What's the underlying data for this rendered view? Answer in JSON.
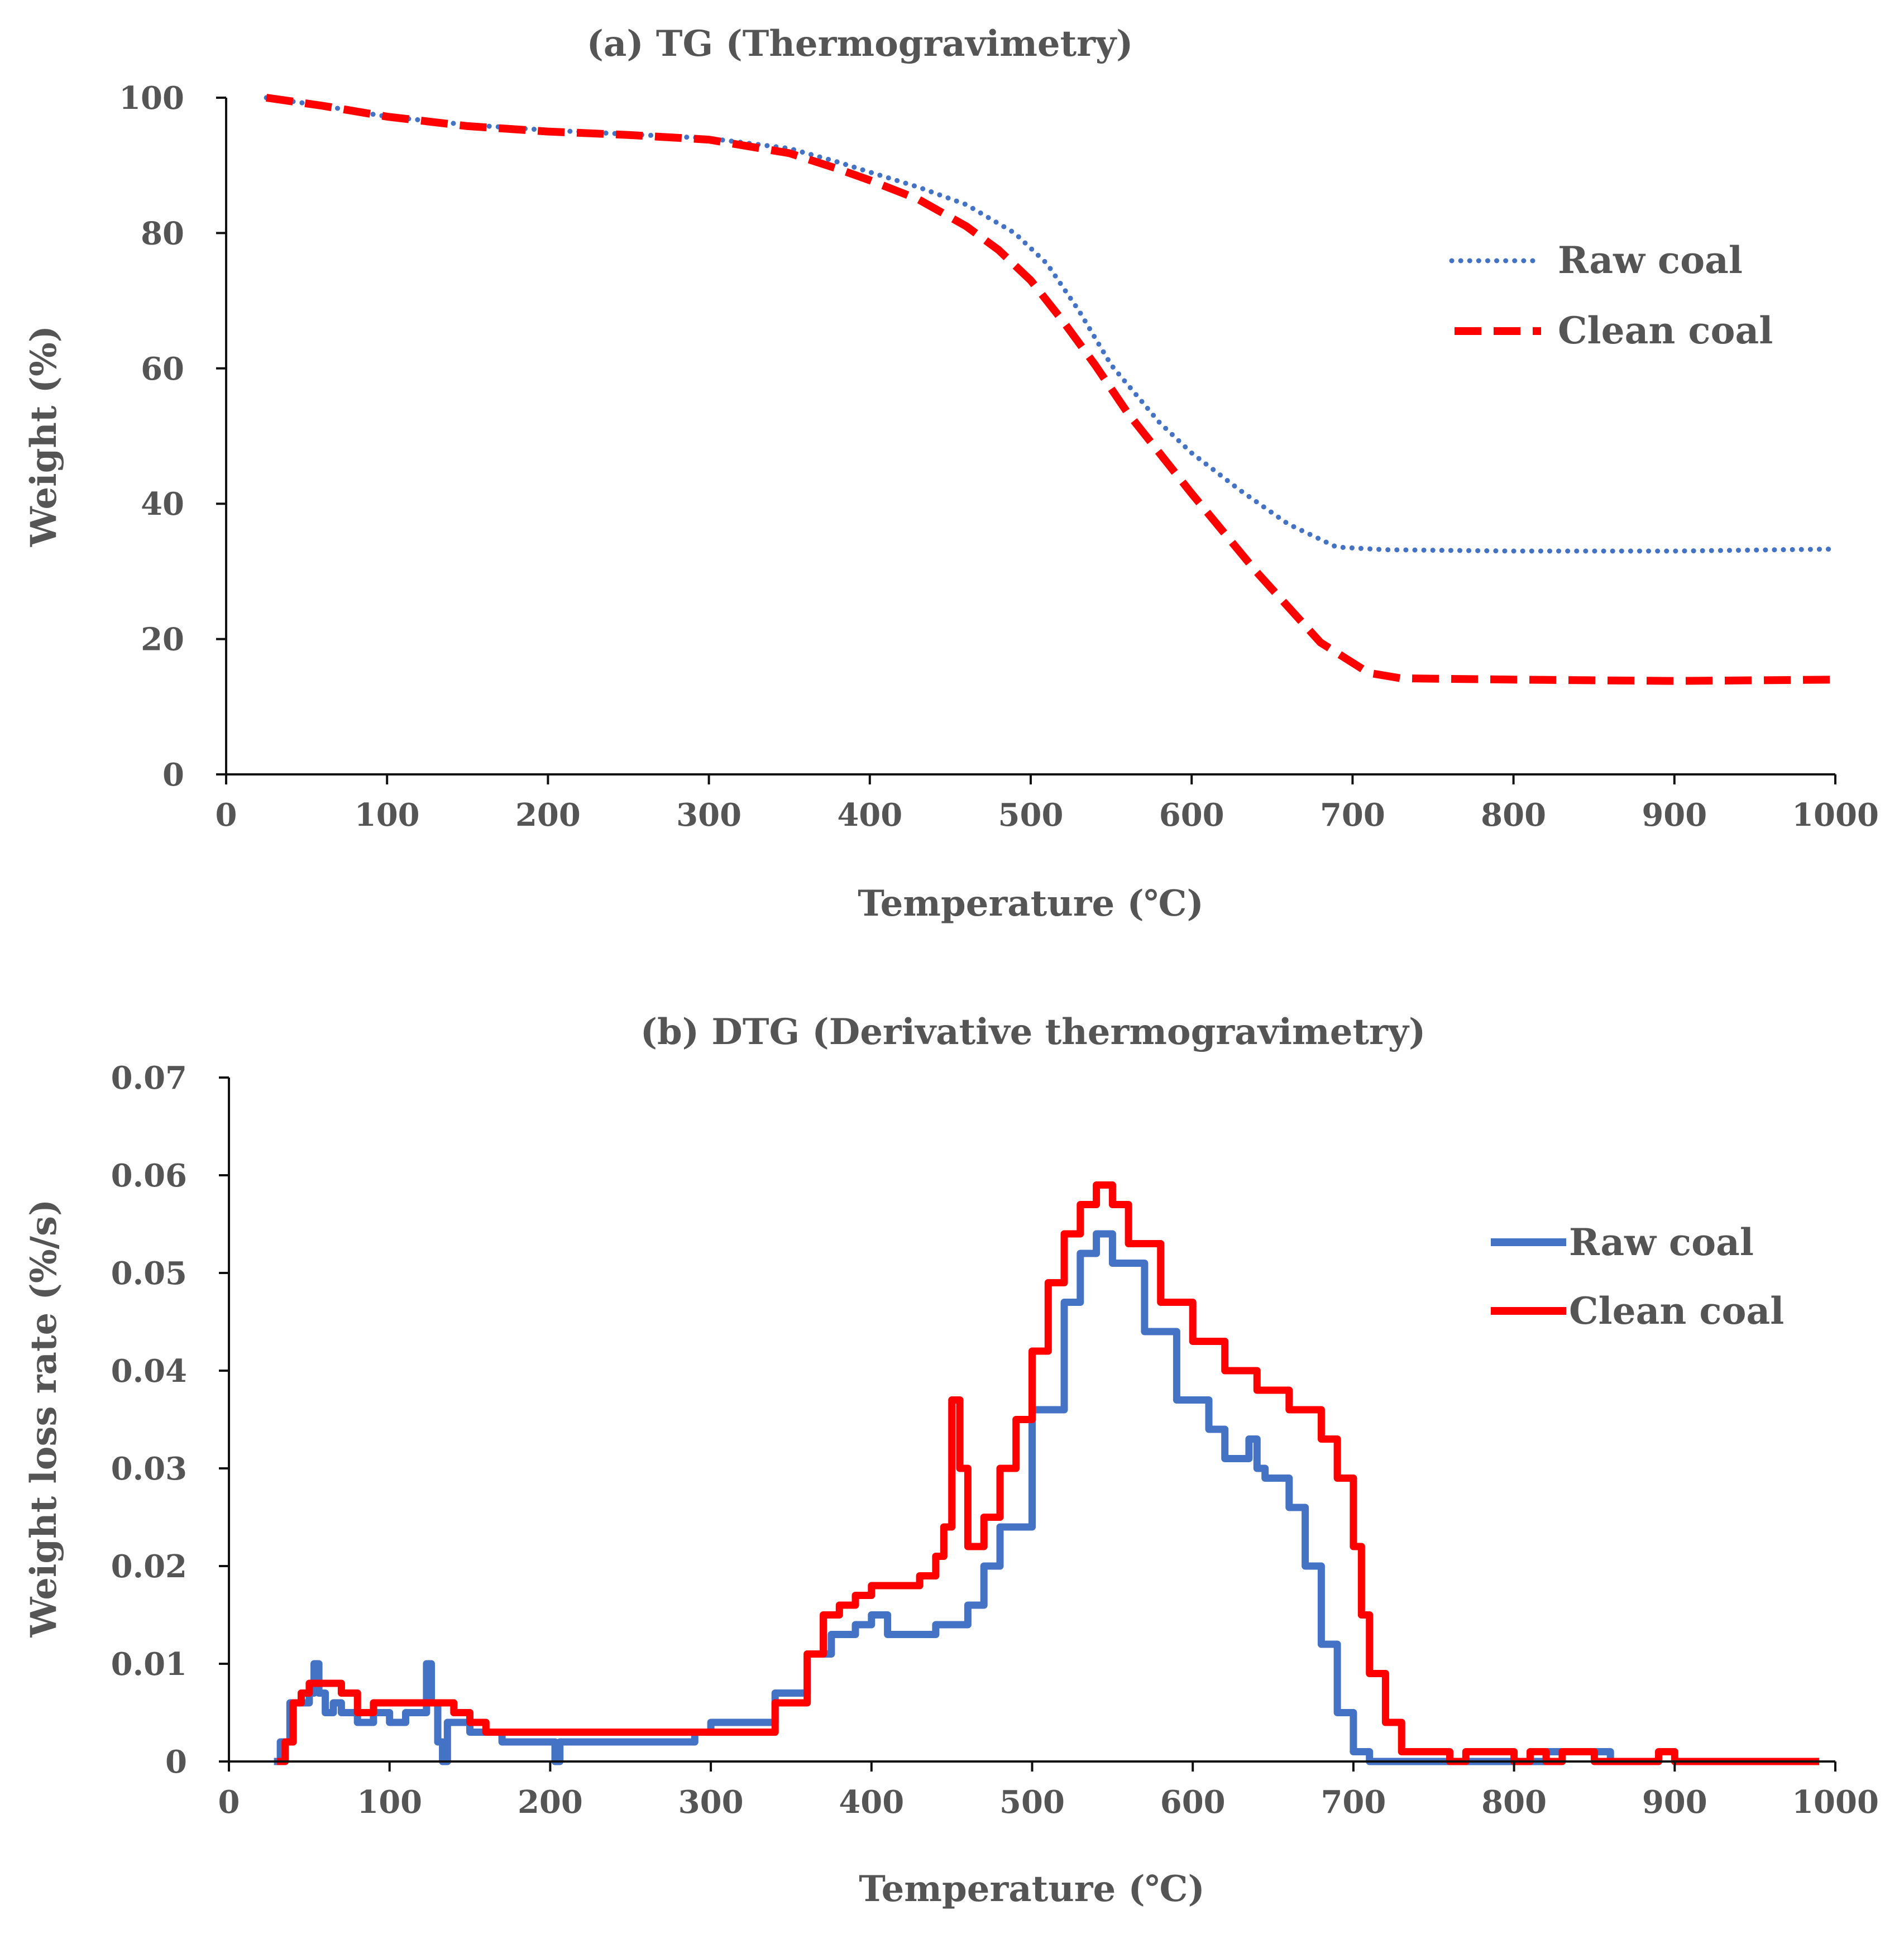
{
  "chart_data": [
    {
      "id": "tg",
      "type": "line",
      "title": "(a) TG (Thermogravimetry)",
      "xlabel": "Temperature (℃)",
      "ylabel": "Weight (%)",
      "xlim": [
        0,
        1000
      ],
      "ylim": [
        0,
        100
      ],
      "xticks": [
        "0",
        "100",
        "200",
        "300",
        "400",
        "500",
        "600",
        "700",
        "800",
        "900",
        "1000"
      ],
      "yticks": [
        "0",
        "20",
        "40",
        "60",
        "80",
        "100"
      ],
      "legend_position": "right",
      "series": [
        {
          "name": "Raw coal",
          "style": "dotted",
          "color": "#4472C4",
          "x": [
            25,
            60,
            100,
            150,
            200,
            250,
            300,
            350,
            380,
            400,
            430,
            460,
            490,
            510,
            530,
            550,
            580,
            600,
            630,
            660,
            690,
            720,
            800,
            900,
            1000
          ],
          "y": [
            100,
            98.8,
            97.2,
            96,
            95.2,
            94.6,
            94,
            92.5,
            90.5,
            89,
            86.8,
            84.2,
            80,
            75.5,
            68.5,
            60.5,
            52,
            47.5,
            42,
            37,
            33.6,
            33.2,
            33,
            33,
            33.3
          ]
        },
        {
          "name": "Clean coal",
          "style": "dashed",
          "color": "#FF0000",
          "x": [
            25,
            60,
            100,
            150,
            200,
            250,
            300,
            350,
            380,
            400,
            430,
            460,
            480,
            500,
            520,
            540,
            560,
            600,
            640,
            680,
            710,
            730,
            800,
            900,
            1000
          ],
          "y": [
            100,
            98.8,
            97.2,
            95.8,
            95,
            94.5,
            93.8,
            91.8,
            89.5,
            87.8,
            85,
            81,
            77.5,
            73,
            67,
            60.5,
            53.5,
            41.5,
            30,
            19.5,
            15,
            14.2,
            14,
            13.8,
            14
          ]
        }
      ]
    },
    {
      "id": "dtg",
      "type": "line",
      "title": "(b) DTG (Derivative thermogravimetry)",
      "xlabel": "Temperature (℃)",
      "ylabel": "Weight loss rate (%/s)",
      "xlim": [
        0,
        1000
      ],
      "ylim": [
        0,
        0.07
      ],
      "xticks": [
        "0",
        "100",
        "200",
        "300",
        "400",
        "500",
        "600",
        "700",
        "800",
        "900",
        "1000"
      ],
      "yticks": [
        "0",
        "0.01",
        "0.02",
        "0.03",
        "0.04",
        "0.05",
        "0.06",
        "0.07"
      ],
      "legend_position": "right",
      "series": [
        {
          "name": "Raw coal",
          "style": "solid",
          "color": "#4472C4",
          "x": [
            28,
            32,
            38,
            45,
            50,
            53,
            56,
            60,
            65,
            70,
            80,
            90,
            100,
            110,
            115,
            120,
            123,
            126,
            130,
            133,
            136,
            150,
            170,
            200,
            203,
            206,
            250,
            290,
            300,
            320,
            340,
            360,
            375,
            390,
            400,
            410,
            440,
            460,
            470,
            480,
            500,
            520,
            530,
            540,
            550,
            570,
            590,
            610,
            620,
            630,
            635,
            640,
            645,
            660,
            670,
            680,
            690,
            700,
            710,
            720,
            800,
            820,
            840,
            855,
            860
          ],
          "y": [
            0,
            0.002,
            0.006,
            0.006,
            0.007,
            0.01,
            0.007,
            0.005,
            0.006,
            0.005,
            0.004,
            0.005,
            0.004,
            0.005,
            0.005,
            0.005,
            0.01,
            0.006,
            0.002,
            0,
            0.004,
            0.003,
            0.002,
            0.002,
            0,
            0.002,
            0.002,
            0.003,
            0.004,
            0.004,
            0.007,
            0.011,
            0.013,
            0.014,
            0.015,
            0.013,
            0.014,
            0.016,
            0.02,
            0.024,
            0.036,
            0.047,
            0.052,
            0.054,
            0.051,
            0.044,
            0.037,
            0.034,
            0.031,
            0.031,
            0.033,
            0.03,
            0.029,
            0.026,
            0.02,
            0.012,
            0.005,
            0.001,
            0,
            0,
            0,
            0.001,
            0.001,
            0.001,
            0
          ]
        },
        {
          "name": "Clean coal",
          "style": "solid",
          "color": "#FF0000",
          "x": [
            30,
            35,
            40,
            45,
            50,
            55,
            60,
            70,
            80,
            90,
            100,
            110,
            120,
            130,
            140,
            150,
            160,
            200,
            250,
            290,
            300,
            320,
            340,
            360,
            370,
            380,
            390,
            400,
            420,
            430,
            440,
            445,
            450,
            455,
            460,
            470,
            480,
            490,
            500,
            510,
            520,
            530,
            540,
            550,
            560,
            580,
            600,
            620,
            640,
            660,
            670,
            680,
            690,
            700,
            705,
            710,
            720,
            730,
            740,
            760,
            770,
            800,
            810,
            820,
            830,
            840,
            850,
            880,
            890,
            900,
            950,
            990
          ],
          "y": [
            0,
            0.002,
            0.006,
            0.007,
            0.008,
            0.008,
            0.008,
            0.007,
            0.005,
            0.006,
            0.006,
            0.006,
            0.006,
            0.006,
            0.005,
            0.004,
            0.003,
            0.003,
            0.003,
            0.003,
            0.003,
            0.003,
            0.006,
            0.011,
            0.015,
            0.016,
            0.017,
            0.018,
            0.018,
            0.019,
            0.021,
            0.024,
            0.037,
            0.03,
            0.022,
            0.025,
            0.03,
            0.035,
            0.042,
            0.049,
            0.054,
            0.057,
            0.059,
            0.057,
            0.053,
            0.047,
            0.043,
            0.04,
            0.038,
            0.036,
            0.036,
            0.033,
            0.029,
            0.022,
            0.015,
            0.009,
            0.004,
            0.001,
            0.001,
            0,
            0.001,
            0,
            0.001,
            0,
            0.001,
            0.001,
            0,
            0,
            0.001,
            0,
            0,
            0
          ]
        }
      ]
    }
  ]
}
